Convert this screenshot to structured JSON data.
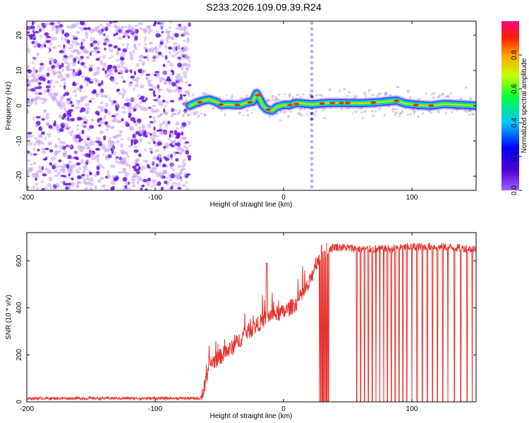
{
  "title": "S233.2026.109.09.39.R24",
  "colors": {
    "spectrogram_scatter": "#8a2be2",
    "snr_line": "#e8302a",
    "axes": "#000000"
  },
  "chart_data": [
    {
      "type": "heatmap",
      "name": "spectrogram",
      "xlabel": "Height of straight line (km)",
      "ylabel": "Frequency (Hz)",
      "xlim": [
        -200,
        150
      ],
      "ylim": [
        -24,
        24
      ],
      "xticks": [
        -200,
        -100,
        0,
        100
      ],
      "xtick_labels": [
        "-200",
        "-100",
        "0",
        "100"
      ],
      "yticks": [
        20,
        10,
        0,
        -10,
        -20
      ],
      "ytick_labels": [
        "20",
        "10",
        "0",
        "-10",
        "-20"
      ],
      "noise_region_km": [
        -200,
        -73
      ],
      "vertical_line_km": 22,
      "ridge_trace": [
        [
          -73,
          0
        ],
        [
          -68,
          0.8
        ],
        [
          -63,
          1.4
        ],
        [
          -58,
          1.8
        ],
        [
          -53,
          1.2
        ],
        [
          -48,
          0.2
        ],
        [
          -43,
          0.4
        ],
        [
          -38,
          0.2
        ],
        [
          -33,
          0.3
        ],
        [
          -28,
          1.0
        ],
        [
          -24,
          1.2
        ],
        [
          -21,
          3.5
        ],
        [
          -19,
          2.2
        ],
        [
          -16,
          0.0
        ],
        [
          -13,
          -1.0
        ],
        [
          -9,
          -1.4
        ],
        [
          -5,
          -0.3
        ],
        [
          0,
          0.2
        ],
        [
          5,
          0.2
        ],
        [
          10,
          0.8
        ],
        [
          16,
          0.6
        ],
        [
          22,
          0.4
        ],
        [
          28,
          0.6
        ],
        [
          35,
          0.8
        ],
        [
          45,
          0.8
        ],
        [
          60,
          0.7
        ],
        [
          75,
          1.0
        ],
        [
          88,
          1.5
        ],
        [
          95,
          0.6
        ],
        [
          105,
          0.2
        ],
        [
          115,
          0.0
        ],
        [
          125,
          0.5
        ],
        [
          135,
          0.3
        ],
        [
          150,
          0.0
        ]
      ]
    },
    {
      "type": "colorbar",
      "label": "Normalized spectral amplitude",
      "range": [
        0,
        1
      ],
      "ticks": [
        0.0,
        0.2,
        0.4,
        0.6,
        0.8
      ],
      "tick_labels": [
        "0.0",
        "0.2",
        "0.4",
        "0.6",
        "0.8"
      ]
    },
    {
      "type": "line",
      "name": "snr",
      "xlabel": "Height of straight line (km)",
      "ylabel": "SNR (10 * v/v)",
      "xlim": [
        -200,
        150
      ],
      "ylim": [
        0,
        720
      ],
      "xticks": [
        -200,
        -100,
        0,
        100
      ],
      "xtick_labels": [
        "-200",
        "-100",
        "0",
        "100"
      ],
      "yticks": [
        0,
        200,
        400,
        600
      ],
      "ytick_labels": [
        "0",
        "200",
        "400",
        "600"
      ],
      "series": [
        {
          "name": "SNR",
          "x": [
            -200,
            -100,
            -65,
            -62,
            -58,
            -50,
            -40,
            -30,
            -20,
            -10,
            0,
            10,
            20,
            25,
            30,
            35,
            40,
            60,
            80,
            100,
            120,
            150
          ],
          "y": [
            15,
            15,
            15,
            50,
            160,
            190,
            230,
            290,
            330,
            370,
            380,
            420,
            500,
            590,
            630,
            650,
            660,
            650,
            650,
            660,
            660,
            650
          ]
        }
      ],
      "peaks": [
        {
          "x": -13,
          "y": 590
        }
      ],
      "dropouts_km": [
        28,
        29,
        30,
        31,
        32,
        33,
        34,
        35,
        57,
        60,
        63,
        66,
        69,
        72,
        75,
        78,
        81,
        84,
        87,
        90,
        93,
        96,
        100,
        104,
        108,
        112,
        116,
        120,
        124,
        128,
        133,
        138,
        143,
        147
      ]
    }
  ]
}
